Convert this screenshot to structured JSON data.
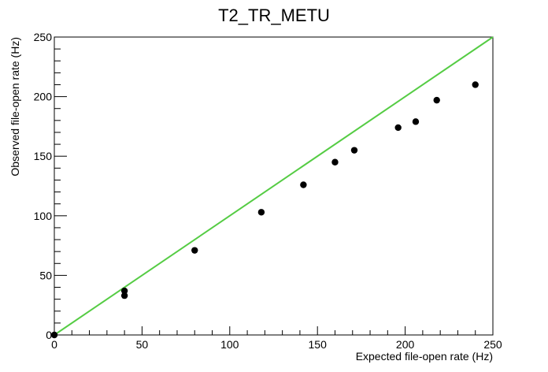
{
  "chart_data": {
    "type": "scatter",
    "title": "T2_TR_METU",
    "xlabel": "Expected file-open rate (Hz)",
    "ylabel": "Observed file-open rate (Hz)",
    "xlim": [
      0,
      250
    ],
    "ylim": [
      0,
      250
    ],
    "x_ticks": [
      "0",
      "50",
      "100",
      "150",
      "200",
      "250"
    ],
    "y_ticks": [
      "0",
      "50",
      "100",
      "150",
      "200",
      "250"
    ],
    "grid": false,
    "legend": "none",
    "series": [
      {
        "x": [
          0,
          40,
          40,
          80,
          118,
          142,
          160,
          171,
          196,
          206,
          218,
          240
        ],
        "y": [
          0,
          37,
          33,
          71,
          103,
          126,
          145,
          155,
          174,
          179,
          197,
          210
        ],
        "color": "#000000"
      }
    ],
    "reference_line": {
      "x": [
        0,
        250
      ],
      "y": [
        0,
        250
      ],
      "color": "#55cc44"
    }
  }
}
